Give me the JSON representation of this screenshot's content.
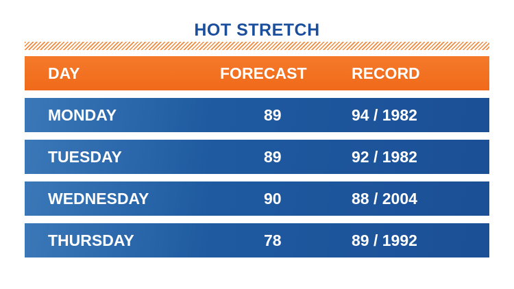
{
  "chart_data": {
    "type": "table",
    "title": "HOT STRETCH",
    "columns": [
      "DAY",
      "FORECAST",
      "RECORD"
    ],
    "rows": [
      {
        "day": "MONDAY",
        "forecast": "89",
        "record": "94 / 1982"
      },
      {
        "day": "TUESDAY",
        "forecast": "89",
        "record": "92 / 1982"
      },
      {
        "day": "WEDNESDAY",
        "forecast": "90",
        "record": "88 / 2004"
      },
      {
        "day": "THURSDAY",
        "forecast": "78",
        "record": "89 / 1992"
      }
    ]
  },
  "colors": {
    "title": "#1b4f9c",
    "header": "#f47a2a",
    "row": "#1f5aa0",
    "hatch": "#f08a3c"
  }
}
